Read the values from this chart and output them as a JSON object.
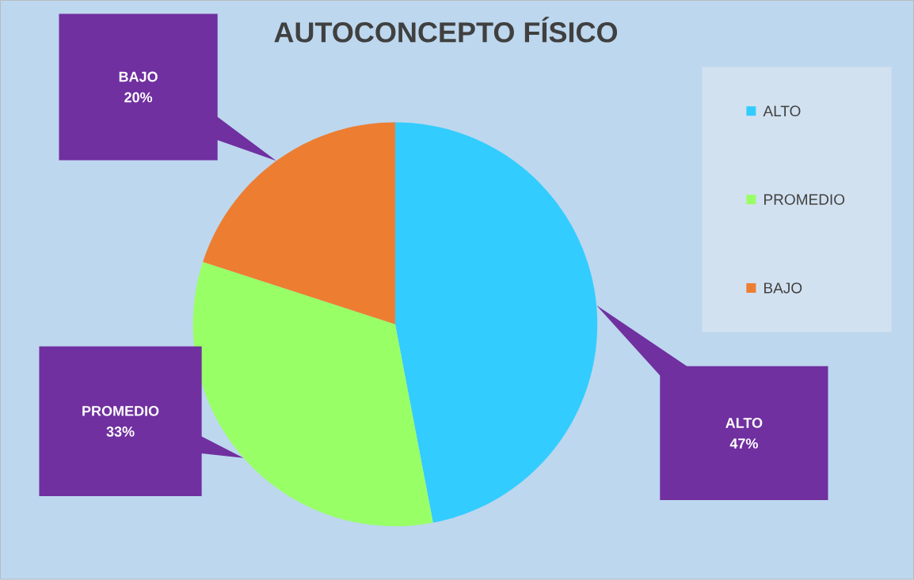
{
  "chart_data": {
    "type": "pie",
    "title": "AUTOCONCEPTO FÍSICO",
    "categories": [
      "ALTO",
      "PROMEDIO",
      "BAJO"
    ],
    "values": [
      47,
      33,
      20
    ],
    "colors": [
      "#33ccff",
      "#99ff66",
      "#ed7d31"
    ],
    "value_labels": [
      "47%",
      "33%",
      "20%"
    ],
    "legend": "right"
  }
}
